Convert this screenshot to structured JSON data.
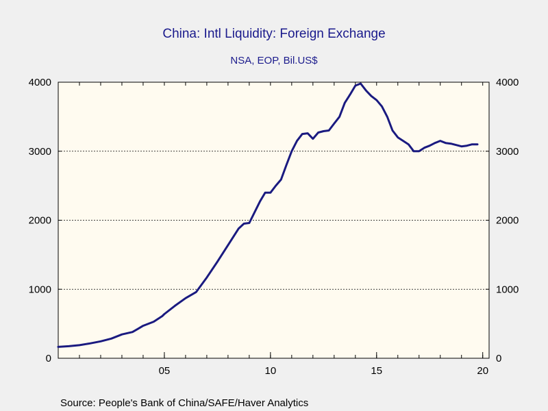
{
  "chart_data": {
    "type": "line",
    "title": "China: Intl Liquidity: Foreign Exchange",
    "subtitle": "NSA, EOP, Bil.US$",
    "source": "Source:  People's Bank of China/SAFE/Haver Analytics",
    "xlim": [
      2000,
      2020.3
    ],
    "ylim": [
      0,
      4000
    ],
    "x_ticks": [
      {
        "value": 2005,
        "label": "05"
      },
      {
        "value": 2010,
        "label": "10"
      },
      {
        "value": 2015,
        "label": "15"
      },
      {
        "value": 2020,
        "label": "20"
      }
    ],
    "y_ticks": [
      0,
      1000,
      2000,
      3000,
      4000
    ],
    "y_ticks_right": [
      0,
      1000,
      2000,
      3000,
      4000
    ],
    "grid": "horizontal dotted at 1000, 2000, 3000",
    "colors": {
      "line": "#1a1a80",
      "plot_bg": "#fffbf0",
      "page_bg": "#f0f0f0",
      "title": "#1a1a8c"
    },
    "series": [
      {
        "x": [
          2000.0,
          2000.5,
          2001.0,
          2001.5,
          2002.0,
          2002.5,
          2003.0,
          2003.5,
          2003.75,
          2004.0,
          2004.5,
          2004.9,
          2005.0,
          2005.5,
          2006.0,
          2006.5,
          2007.0,
          2007.5,
          2008.0,
          2008.5,
          2008.75,
          2009.0,
          2009.5,
          2009.75,
          2010.0,
          2010.25,
          2010.5,
          2010.75,
          2011.0,
          2011.25,
          2011.5,
          2011.75,
          2012.0,
          2012.25,
          2012.5,
          2012.75,
          2013.0,
          2013.25,
          2013.5,
          2013.75,
          2014.0,
          2014.25,
          2014.5,
          2014.75,
          2015.0,
          2015.25,
          2015.5,
          2015.75,
          2016.0,
          2016.25,
          2016.5,
          2016.75,
          2017.0,
          2017.25,
          2017.5,
          2017.75,
          2018.0,
          2018.25,
          2018.5,
          2018.75,
          2019.0,
          2019.25,
          2019.5,
          2019.75
        ],
        "y": [
          165,
          175,
          190,
          215,
          245,
          285,
          345,
          380,
          425,
          470,
          530,
          610,
          640,
          760,
          870,
          960,
          1170,
          1400,
          1640,
          1880,
          1950,
          1960,
          2270,
          2400,
          2400,
          2500,
          2590,
          2800,
          3000,
          3150,
          3250,
          3260,
          3180,
          3270,
          3290,
          3300,
          3400,
          3500,
          3700,
          3820,
          3950,
          3980,
          3880,
          3800,
          3740,
          3650,
          3500,
          3300,
          3200,
          3150,
          3100,
          3000,
          3000,
          3050,
          3080,
          3120,
          3150,
          3120,
          3110,
          3090,
          3070,
          3080,
          3100,
          3100
        ]
      }
    ]
  }
}
